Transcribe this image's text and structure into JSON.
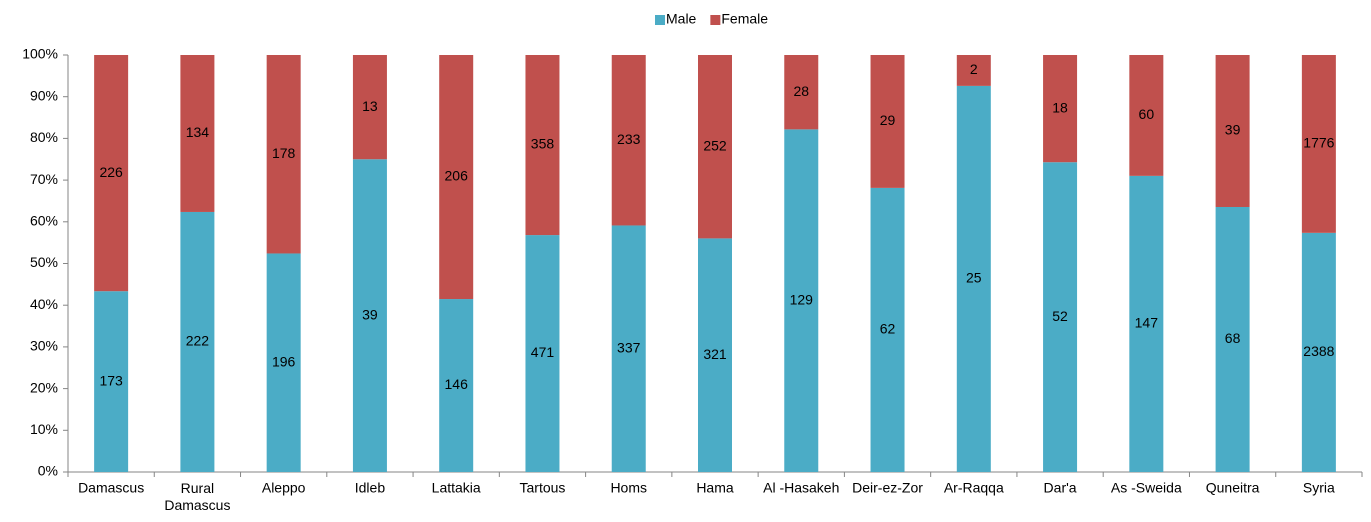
{
  "chart_data": {
    "type": "bar",
    "stacking": "percent",
    "categories": [
      "Damascus",
      "Rural Damascus",
      "Aleppo",
      "Idleb",
      "Lattakia",
      "Tartous",
      "Homs",
      "Hama",
      "Al -Hasakeh",
      "Deir-ez-Zor",
      "Ar-Raqqa",
      "Dar'a",
      "As -Sweida",
      "Quneitra",
      "Syria"
    ],
    "series": [
      {
        "name": "Male",
        "color": "#4bacc6",
        "values": [
          173,
          222,
          196,
          39,
          146,
          471,
          337,
          321,
          129,
          62,
          25,
          52,
          147,
          68,
          2388
        ]
      },
      {
        "name": "Female",
        "color": "#c0504d",
        "values": [
          226,
          134,
          178,
          13,
          206,
          358,
          233,
          252,
          28,
          29,
          2,
          18,
          60,
          39,
          1776
        ]
      }
    ],
    "ylim": [
      0,
      100
    ],
    "yticks": [
      {
        "value": 0,
        "label": "0%"
      },
      {
        "value": 10,
        "label": "10%"
      },
      {
        "value": 20,
        "label": "20%"
      },
      {
        "value": 30,
        "label": "30%"
      },
      {
        "value": 40,
        "label": "40%"
      },
      {
        "value": 50,
        "label": "50%"
      },
      {
        "value": 60,
        "label": "60%"
      },
      {
        "value": 70,
        "label": "70%"
      },
      {
        "value": 80,
        "label": "80%"
      },
      {
        "value": 90,
        "label": "90%"
      },
      {
        "value": 100,
        "label": "100%"
      }
    ],
    "legend": "top",
    "grid": false
  }
}
